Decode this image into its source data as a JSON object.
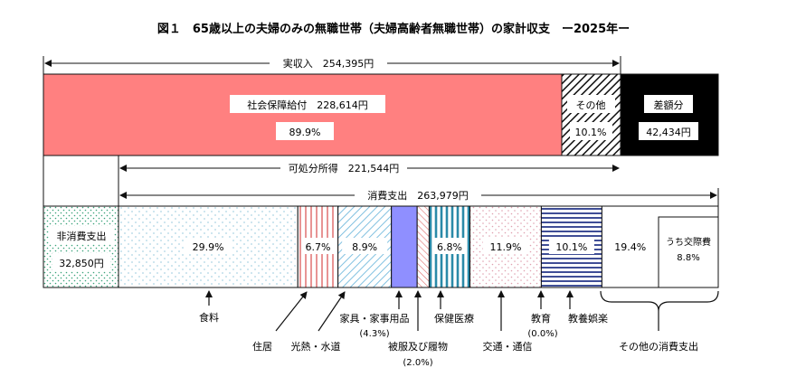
{
  "title": "図１　65歳以上の夫婦のみの無職世帯（夫婦高齢者無職世帯）の家計収支　ー2025年ー",
  "chart_data": {
    "type": "bar",
    "title": "図１　65歳以上の夫婦のみの無職世帯（夫婦高齢者無職世帯）の家計収支　ー2025年ー",
    "income_bar": {
      "span_label": "実収入　254,395円",
      "segments": [
        {
          "label": "社会保障給付　228,614円",
          "value_text": "89.9%",
          "share": 89.9,
          "color": "#ff8080"
        },
        {
          "label": "その他",
          "value_text": "10.1%",
          "share": 10.1,
          "color": "hatched"
        },
        {
          "label": "差額分",
          "value_text": "42,434円",
          "amount": 42434,
          "color": "#000000"
        }
      ],
      "disposable_label": "可処分所得　221,544円"
    },
    "expenditure_bar": {
      "span_label": "消費支出　263,979円",
      "non_consumption": {
        "label": "非消費支出",
        "value_text": "32,850円",
        "amount": 32850
      },
      "segments": [
        {
          "label": "29.9%",
          "share": 29.9,
          "category": "食料"
        },
        {
          "label": "6.7%",
          "share": 6.7,
          "category": "住居"
        },
        {
          "label": "8.9%",
          "share": 8.9,
          "category": "光熱・水道"
        },
        {
          "label": "",
          "share": 4.3,
          "category": "家具・家事用品"
        },
        {
          "label": "",
          "share": 2.0,
          "category": "被服及び履物"
        },
        {
          "label": "6.8%",
          "share": 6.8,
          "category": "保健医療"
        },
        {
          "label": "11.9%",
          "share": 11.9,
          "category": "交通・通信"
        },
        {
          "label": "",
          "share": 0.0,
          "category": "教育"
        },
        {
          "label": "10.1%",
          "share": 10.1,
          "category": "教養娯楽"
        },
        {
          "label": "19.4%",
          "share": 19.4,
          "category": "その他の消費支出"
        }
      ],
      "inset": {
        "label": "うち交際費",
        "value_text": "8.8%"
      }
    },
    "callouts": {
      "food": "食料",
      "housing": "住居",
      "utilities": "光熱・水道",
      "furniture": "家具・家事用品",
      "furniture_pct": "(4.3%)",
      "clothing": "被服及び履物",
      "clothing_pct": "(2.0%)",
      "medical": "保健医療",
      "transport": "交通・通信",
      "education": "教育",
      "education_pct": "(0.0%)",
      "recreation": "教養娯楽",
      "other": "その他の消費支出"
    }
  }
}
